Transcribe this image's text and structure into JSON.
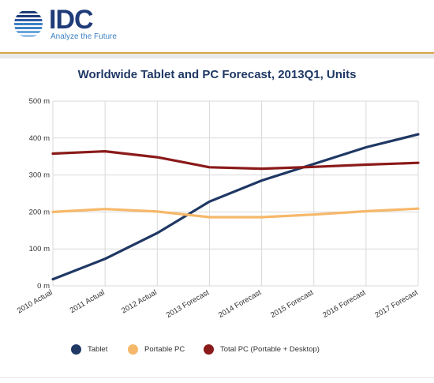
{
  "header": {
    "logo_text": "IDC",
    "tagline": "Analyze the Future"
  },
  "chart_data": {
    "type": "line",
    "title": "Worldwide Tablet and PC Forecast, 2013Q1, Units",
    "xlabel": "",
    "ylabel": "",
    "categories": [
      "2010 Actual",
      "2011 Actual",
      "2012 Actual",
      "2013 Forecast",
      "2014 Forecast",
      "2015 Forecast",
      "2016 Forecast",
      "2017 Forecast"
    ],
    "y_ticks": [
      "0 m",
      "100 m",
      "200 m",
      "300 m",
      "400 m",
      "500 m"
    ],
    "ylim": [
      0,
      500
    ],
    "grid": true,
    "legend_position": "bottom",
    "series": [
      {
        "name": "Tablet",
        "color": "#1f3864",
        "values": [
          18,
          73,
          143,
          228,
          285,
          330,
          375,
          410
        ]
      },
      {
        "name": "Portable PC",
        "color": "#f6b86a",
        "values": [
          200,
          208,
          201,
          186,
          186,
          193,
          202,
          209
        ]
      },
      {
        "name": "Total PC (Portable + Desktop)",
        "color": "#8b1a1a",
        "values": [
          358,
          364,
          348,
          321,
          317,
          322,
          328,
          333
        ]
      }
    ]
  }
}
